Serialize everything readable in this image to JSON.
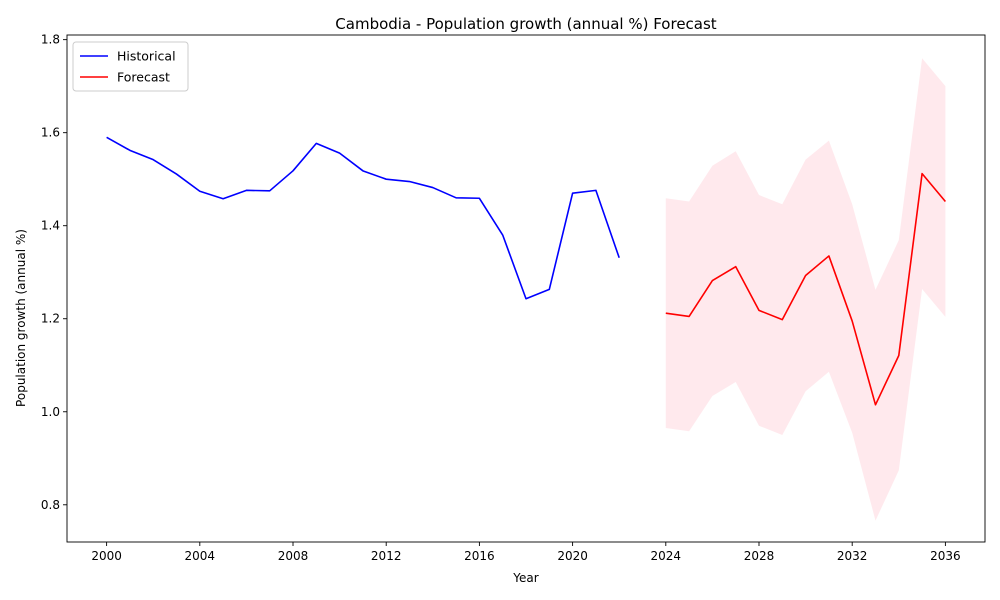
{
  "chart_data": {
    "type": "line",
    "title": "Cambodia - Population growth (annual %) Forecast",
    "xlabel": "Year",
    "ylabel": "Population growth (annual %)",
    "xlim": [
      1998.3,
      2037.7
    ],
    "ylim": [
      0.72,
      1.81
    ],
    "x_ticks": [
      2000,
      2004,
      2008,
      2012,
      2016,
      2020,
      2024,
      2028,
      2032,
      2036
    ],
    "y_ticks": [
      0.8,
      1.0,
      1.2,
      1.4,
      1.6,
      1.8
    ],
    "x_tick_labels": [
      "2000",
      "2004",
      "2008",
      "2012",
      "2016",
      "2020",
      "2024",
      "2028",
      "2032",
      "2036"
    ],
    "y_tick_labels": [
      "0.8",
      "1.0",
      "1.2",
      "1.4",
      "1.6",
      "1.8"
    ],
    "grid": false,
    "legend_position": "top-left",
    "series": [
      {
        "name": "Historical",
        "color": "#0000ff",
        "x": [
          2000,
          2001,
          2002,
          2003,
          2004,
          2005,
          2006,
          2007,
          2008,
          2009,
          2010,
          2011,
          2012,
          2013,
          2014,
          2015,
          2016,
          2017,
          2018,
          2019,
          2020,
          2021,
          2022
        ],
        "values": [
          1.59,
          1.562,
          1.542,
          1.511,
          1.474,
          1.458,
          1.476,
          1.475,
          1.518,
          1.577,
          1.556,
          1.518,
          1.5,
          1.495,
          1.482,
          1.46,
          1.459,
          1.38,
          1.243,
          1.263,
          1.47,
          1.476,
          1.331
        ]
      },
      {
        "name": "Forecast",
        "color": "#ff0000",
        "x": [
          2024,
          2025,
          2026,
          2027,
          2028,
          2029,
          2030,
          2031,
          2032,
          2033,
          2034,
          2035,
          2036
        ],
        "values": [
          1.212,
          1.205,
          1.282,
          1.312,
          1.218,
          1.198,
          1.293,
          1.335,
          1.195,
          1.015,
          1.121,
          1.512,
          1.452
        ],
        "lower": [
          0.965,
          0.958,
          1.034,
          1.064,
          0.97,
          0.95,
          1.044,
          1.086,
          0.955,
          0.766,
          0.874,
          1.264,
          1.204
        ],
        "upper": [
          1.459,
          1.452,
          1.529,
          1.56,
          1.466,
          1.446,
          1.542,
          1.583,
          1.446,
          1.262,
          1.369,
          1.76,
          1.7
        ],
        "band_color": "#ffc0cb"
      }
    ]
  }
}
